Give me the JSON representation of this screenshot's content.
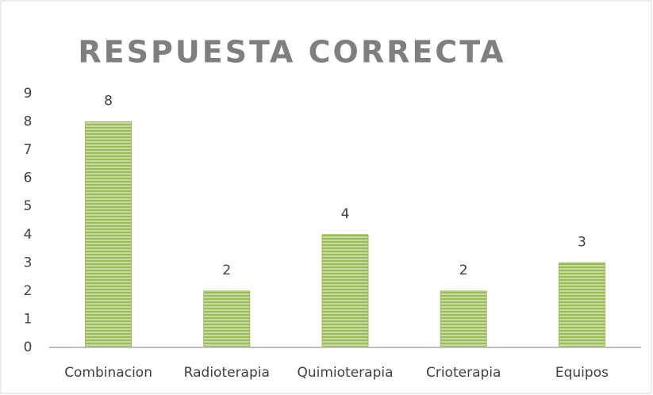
{
  "chart_data": {
    "type": "bar",
    "title": "RESPUESTA CORRECTA",
    "categories": [
      "Combinacion",
      "Radioterapia",
      "Quimioterapia",
      "Crioterapia",
      "Equipos"
    ],
    "values": [
      8,
      2,
      4,
      2,
      3
    ],
    "color": "#9bbb59",
    "ylim": [
      0,
      9
    ],
    "yticks": [
      0,
      1,
      2,
      3,
      4,
      5,
      6,
      7,
      8,
      9
    ],
    "grid": false,
    "data_labels": true
  }
}
